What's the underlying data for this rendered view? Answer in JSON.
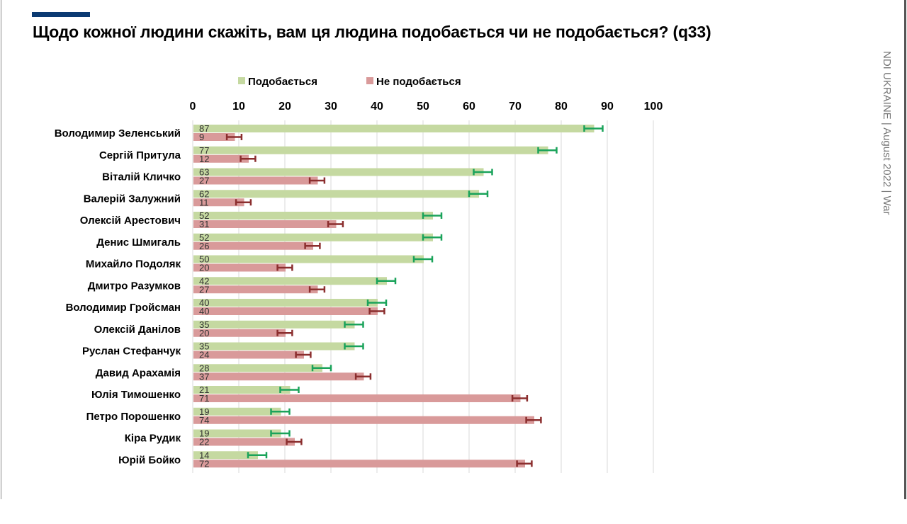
{
  "title": "Щодо кожної людини скажіть, вам ця людина подобається чи не подобається? (q33)",
  "side_note": "NDI UKRAINE | August 2022 | War",
  "colors": {
    "like": "#c5d9a1",
    "dislike": "#d99a9a",
    "like_err": "#1aa35a",
    "dislike_err": "#8b2e2e",
    "accent": "#0b3a72"
  },
  "chart_data": {
    "type": "bar",
    "orientation": "horizontal",
    "xlim": [
      0,
      100
    ],
    "ticks": [
      "0",
      "10",
      "20",
      "30",
      "40",
      "50",
      "60",
      "70",
      "80",
      "90",
      "100"
    ],
    "grid": true,
    "legend_position": "top",
    "error_bars": true,
    "categories": [
      "Володимир Зеленський",
      "Сергій Притула",
      "Віталій Кличко",
      "Валерій Залужний",
      "Олексій Арестович",
      "Денис Шмигаль",
      "Михайло Подоляк",
      "Дмитро Разумков",
      "Володимир Гройсман",
      "Олексій Данілов",
      "Руслан Стефанчук",
      "Давид Арахамія",
      "Юлія Тимошенко",
      "Петро Порошенко",
      "Кіра Рудик",
      "Юрій Бойко"
    ],
    "series": [
      {
        "name": "Подобається",
        "values": [
          87,
          77,
          63,
          62,
          52,
          52,
          50,
          42,
          40,
          35,
          35,
          28,
          21,
          19,
          19,
          14
        ]
      },
      {
        "name": "Не подобається",
        "values": [
          9,
          12,
          27,
          11,
          31,
          26,
          20,
          27,
          40,
          20,
          24,
          37,
          71,
          74,
          22,
          72
        ]
      }
    ]
  }
}
